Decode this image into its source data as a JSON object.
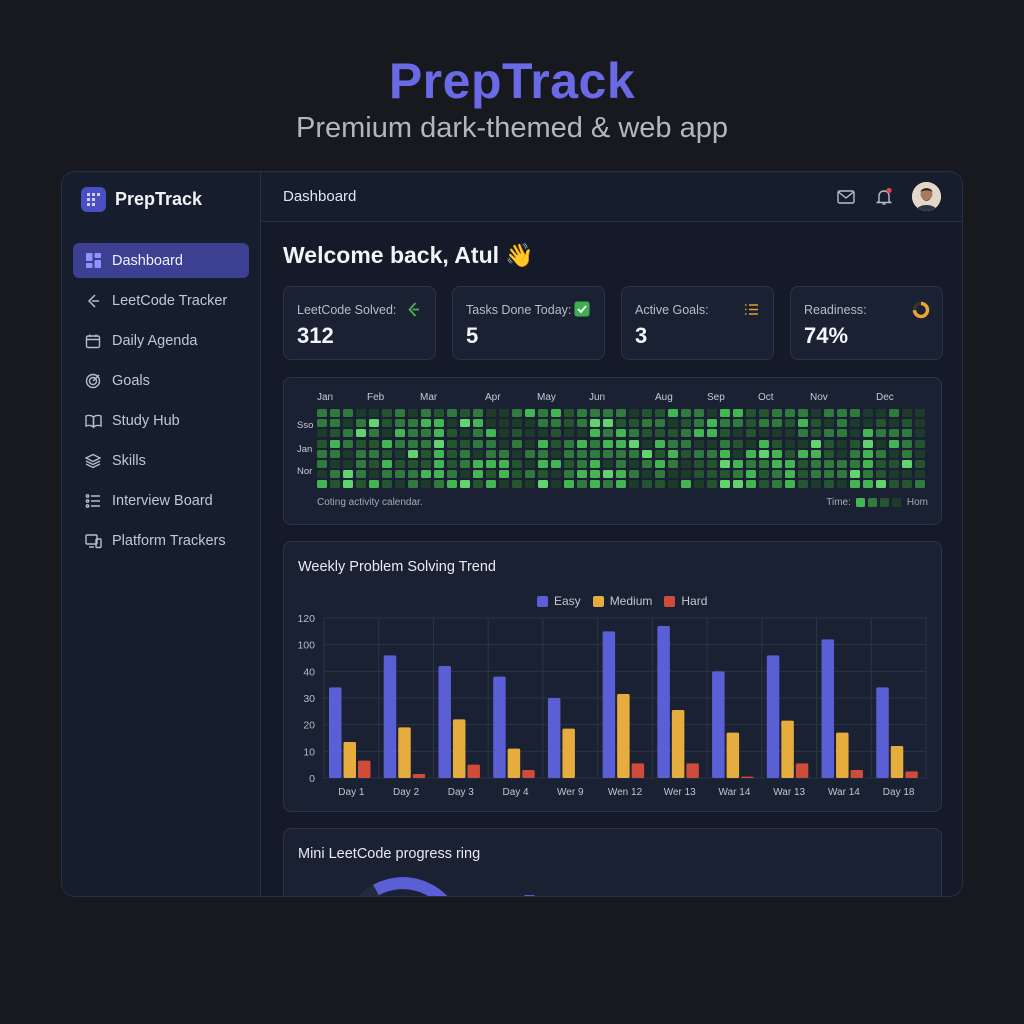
{
  "hero": {
    "title": "PrepTrack",
    "subtitle": "Premium dark-themed & web app"
  },
  "brand": {
    "name": "PrepTrack",
    "icon": "grid-logo-icon"
  },
  "sidebar": {
    "items": [
      {
        "label": "Dashboard",
        "icon": "dashboard-icon",
        "active": true
      },
      {
        "label": "LeetCode Tracker",
        "icon": "leetcode-icon"
      },
      {
        "label": "Daily Agenda",
        "icon": "calendar-icon"
      },
      {
        "label": "Goals",
        "icon": "target-icon"
      },
      {
        "label": "Study Hub",
        "icon": "book-icon"
      },
      {
        "label": "Skills",
        "icon": "layers-icon"
      },
      {
        "label": "Interview Board",
        "icon": "list-icon"
      },
      {
        "label": "Platform Trackers",
        "icon": "devices-icon"
      }
    ]
  },
  "topbar": {
    "title": "Dashboard",
    "mail_icon": "mail-icon",
    "bell_icon": "bell-icon"
  },
  "welcome": {
    "text": "Welcome back, Atul 👋"
  },
  "stats": [
    {
      "label": "LeetCode Solved:",
      "value": "312",
      "icon": "leetcode-icon",
      "color": "#4caf50"
    },
    {
      "label": "Tasks Done Today:",
      "value": "5",
      "icon": "check-box-icon",
      "color": "#3fae4f"
    },
    {
      "label": "Active Goals:",
      "value": "3",
      "icon": "list-icon",
      "color": "#e0a13a"
    },
    {
      "label": "Readiness:",
      "value": "74%",
      "icon": "progress-ring-icon",
      "color": "#e8a33a",
      "progress": 0.74
    }
  ],
  "heatmap": {
    "months": [
      "Jan",
      "Feb",
      "Mar",
      "Apr",
      "May",
      "Jun",
      "Aug",
      "Sep",
      "Oct",
      "Nov",
      "Dec"
    ],
    "days": [
      "Sso",
      "Jan",
      "Nor"
    ],
    "caption": "Coting activity calendar.",
    "legend_label": "Time:",
    "legend_end": "Hom",
    "colors": [
      "#1d3b2a",
      "#24552f",
      "#2f7a3c",
      "#43b553",
      "#63d36f"
    ]
  },
  "chart_data": {
    "type": "bar",
    "title": "Weekly Problem Solving Trend",
    "categories": [
      "Day 1",
      "Day 2",
      "Day 3",
      "Day 4",
      "Wer 9",
      "Wen 12",
      "Wer 13",
      "War 14",
      "War 13",
      "War 14",
      "Day 18"
    ],
    "y_ticks": [
      "0",
      "10",
      "20",
      "30",
      "40",
      "100",
      "120"
    ],
    "series": [
      {
        "name": "Easy",
        "color": "#5b5fd6",
        "values": [
          34,
          46,
          42,
          38,
          30,
          55,
          57,
          40,
          46,
          52,
          34
        ]
      },
      {
        "name": "Medium",
        "color": "#e6ad3e",
        "values": [
          13.5,
          19,
          22,
          11,
          18.5,
          31.5,
          25.5,
          17,
          21.5,
          17,
          12
        ]
      },
      {
        "name": "Hard",
        "color": "#cf4b3a",
        "values": [
          6.5,
          1.5,
          5,
          3,
          0,
          5.5,
          5.5,
          0.5,
          5.5,
          3,
          2.5
        ]
      }
    ],
    "grid": true,
    "legend": "top-center"
  },
  "ring_card": {
    "title": "Mini LeetCode progress ring"
  }
}
